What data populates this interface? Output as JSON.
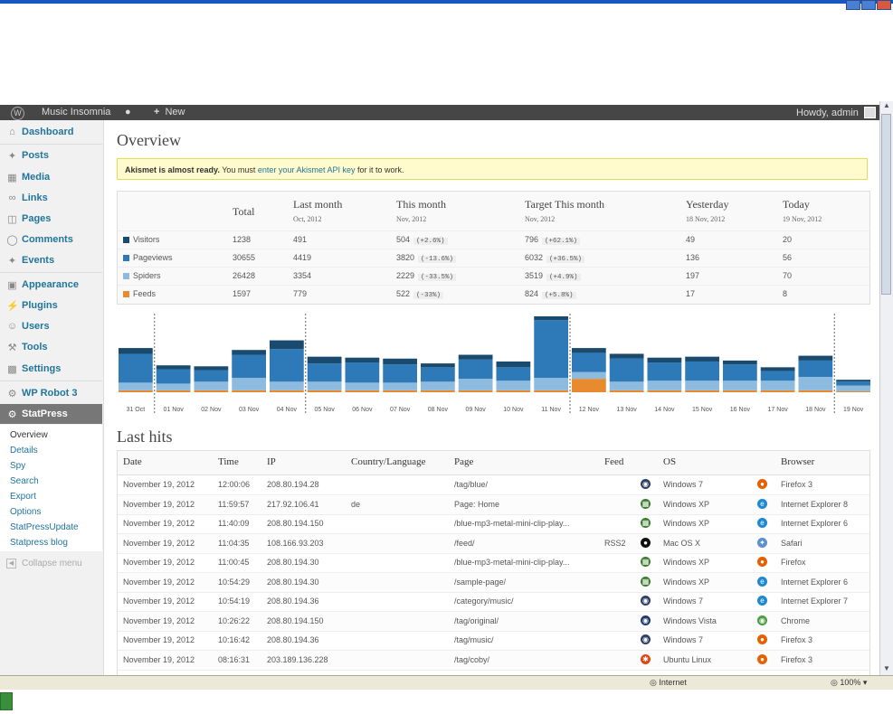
{
  "adminbar": {
    "site_name": "Music Insomnia",
    "new_label": "New",
    "howdy": "Howdy, admin"
  },
  "menu": {
    "dashboard": "Dashboard",
    "posts": "Posts",
    "media": "Media",
    "links": "Links",
    "pages": "Pages",
    "comments": "Comments",
    "events": "Events",
    "appearance": "Appearance",
    "plugins": "Plugins",
    "users": "Users",
    "tools": "Tools",
    "settings": "Settings",
    "wp_robot": "WP Robot 3",
    "statpress": "StatPress"
  },
  "submenu": {
    "overview": "Overview",
    "details": "Details",
    "spy": "Spy",
    "search": "Search",
    "export": "Export",
    "options": "Options",
    "update": "StatPressUpdate",
    "blog": "Statpress blog",
    "collapse": "Collapse menu"
  },
  "page": {
    "title": "Overview",
    "lasthits_title": "Last hits"
  },
  "notice": {
    "bold": "Akismet is almost ready.",
    "text1": " You must ",
    "link": "enter your Akismet API key",
    "text2": " for it to work."
  },
  "overview": {
    "headers": {
      "total": "Total",
      "last_month": "Last month",
      "last_month_sub": "Oct, 2012",
      "this_month": "This month",
      "this_month_sub": "Nov, 2012",
      "target": "Target This month",
      "target_sub": "Nov, 2012",
      "yesterday": "Yesterday",
      "yesterday_sub": "18 Nov, 2012",
      "today": "Today",
      "today_sub": "19 Nov, 2012"
    },
    "rows": [
      {
        "label": "Visitors",
        "color": "#1a4a6e",
        "total": "1238",
        "last": "491",
        "this": "504",
        "this_d": "(+2.6%)",
        "target": "796",
        "target_d": "(+62.1%)",
        "yesterday": "49",
        "today": "20"
      },
      {
        "label": "Pageviews",
        "color": "#2e7ab8",
        "total": "30655",
        "last": "4419",
        "this": "3820",
        "this_d": "(-13.6%)",
        "target": "6032",
        "target_d": "(+36.5%)",
        "yesterday": "136",
        "today": "56"
      },
      {
        "label": "Spiders",
        "color": "#8dbbe0",
        "total": "26428",
        "last": "3354",
        "this": "2229",
        "this_d": "(-33.5%)",
        "target": "3519",
        "target_d": "(+4.9%)",
        "yesterday": "197",
        "today": "70"
      },
      {
        "label": "Feeds",
        "color": "#e88a2e",
        "total": "1597",
        "last": "779",
        "this": "522",
        "this_d": "(-33%)",
        "target": "824",
        "target_d": "(+5.8%)",
        "yesterday": "17",
        "today": "8"
      }
    ]
  },
  "chart_data": {
    "type": "bar",
    "categories": [
      "31 Oct",
      "01 Nov",
      "02 Nov",
      "03 Nov",
      "04 Nov",
      "05 Nov",
      "06 Nov",
      "07 Nov",
      "08 Nov",
      "09 Nov",
      "10 Nov",
      "11 Nov",
      "12 Nov",
      "13 Nov",
      "14 Nov",
      "15 Nov",
      "16 Nov",
      "17 Nov",
      "18 Nov",
      "19 Nov"
    ],
    "series": [
      {
        "name": "Visitors",
        "color": "#1a4a6e",
        "values": [
          6,
          4,
          4,
          5,
          9,
          7,
          5,
          6,
          4,
          5,
          6,
          4,
          5,
          5,
          5,
          5,
          4,
          4,
          5,
          2
        ]
      },
      {
        "name": "Pageviews",
        "color": "#2e7ab8",
        "values": [
          30,
          15,
          12,
          24,
          34,
          19,
          21,
          19,
          15,
          20,
          14,
          60,
          20,
          24,
          19,
          20,
          17,
          10,
          17,
          4
        ]
      },
      {
        "name": "Spiders",
        "color": "#8dbbe0",
        "values": [
          8,
          7,
          9,
          13,
          9,
          9,
          8,
          8,
          9,
          12,
          10,
          13,
          7,
          9,
          10,
          10,
          10,
          10,
          14,
          6
        ]
      },
      {
        "name": "Feeds",
        "color": "#e88a2e",
        "values": [
          2,
          2,
          2,
          2,
          2,
          2,
          2,
          2,
          2,
          2,
          2,
          2,
          14,
          2,
          2,
          2,
          2,
          2,
          2,
          1
        ]
      }
    ],
    "separators_after": [
      "31 Oct",
      "04 Nov",
      "11 Nov",
      "18 Nov"
    ]
  },
  "lasthits": {
    "headers": {
      "date": "Date",
      "time": "Time",
      "ip": "IP",
      "country": "Country/Language",
      "page": "Page",
      "feed": "Feed",
      "os": "OS",
      "browser": "Browser"
    },
    "rows": [
      {
        "date": "November 19, 2012",
        "time": "12:00:06",
        "ip": "208.80.194.28",
        "country": "",
        "page": "/tag/blue/",
        "feed": "",
        "os": "Windows 7",
        "os_icon": "windows7-icon",
        "browser": "Firefox 3",
        "browser_icon": "firefox-icon"
      },
      {
        "date": "November 19, 2012",
        "time": "11:59:57",
        "ip": "217.92.106.41",
        "country": "de",
        "page": "Page: Home",
        "feed": "",
        "os": "Windows XP",
        "os_icon": "windowsxp-icon",
        "browser": "Internet Explorer 8",
        "browser_icon": "ie-icon"
      },
      {
        "date": "November 19, 2012",
        "time": "11:40:09",
        "ip": "208.80.194.150",
        "country": "",
        "page": "/blue-mp3-metal-mini-clip-play...",
        "feed": "",
        "os": "Windows XP",
        "os_icon": "windowsxp-icon",
        "browser": "Internet Explorer 6",
        "browser_icon": "ie-icon"
      },
      {
        "date": "November 19, 2012",
        "time": "11:04:35",
        "ip": "108.166.93.203",
        "country": "",
        "page": "/feed/",
        "feed": "RSS2",
        "os": "Mac OS X",
        "os_icon": "apple-icon",
        "browser": "Safari",
        "browser_icon": "safari-icon"
      },
      {
        "date": "November 19, 2012",
        "time": "11:00:45",
        "ip": "208.80.194.30",
        "country": "",
        "page": "/blue-mp3-metal-mini-clip-play...",
        "feed": "",
        "os": "Windows XP",
        "os_icon": "windowsxp-icon",
        "browser": "Firefox",
        "browser_icon": "firefox-icon"
      },
      {
        "date": "November 19, 2012",
        "time": "10:54:29",
        "ip": "208.80.194.30",
        "country": "",
        "page": "/sample-page/",
        "feed": "",
        "os": "Windows XP",
        "os_icon": "windowsxp-icon",
        "browser": "Internet Explorer 6",
        "browser_icon": "ie-icon"
      },
      {
        "date": "November 19, 2012",
        "time": "10:54:19",
        "ip": "208.80.194.36",
        "country": "",
        "page": "/category/music/",
        "feed": "",
        "os": "Windows 7",
        "os_icon": "windows7-icon",
        "browser": "Internet Explorer 7",
        "browser_icon": "ie-icon"
      },
      {
        "date": "November 19, 2012",
        "time": "10:26:22",
        "ip": "208.80.194.150",
        "country": "",
        "page": "/tag/original/",
        "feed": "",
        "os": "Windows Vista",
        "os_icon": "windowsvista-icon",
        "browser": "Chrome",
        "browser_icon": "chrome-icon"
      },
      {
        "date": "November 19, 2012",
        "time": "10:16:42",
        "ip": "208.80.194.36",
        "country": "",
        "page": "/tag/music/",
        "feed": "",
        "os": "Windows 7",
        "os_icon": "windows7-icon",
        "browser": "Firefox 3",
        "browser_icon": "firefox-icon"
      },
      {
        "date": "November 19, 2012",
        "time": "08:16:31",
        "ip": "203.189.136.228",
        "country": "",
        "page": "/tag/coby/",
        "feed": "",
        "os": "Ubuntu Linux",
        "os_icon": "ubuntu-icon",
        "browser": "Firefox 3",
        "browser_icon": "firefox-icon"
      }
    ]
  },
  "statusbar": {
    "zone": "Internet",
    "zoom": "100%"
  }
}
